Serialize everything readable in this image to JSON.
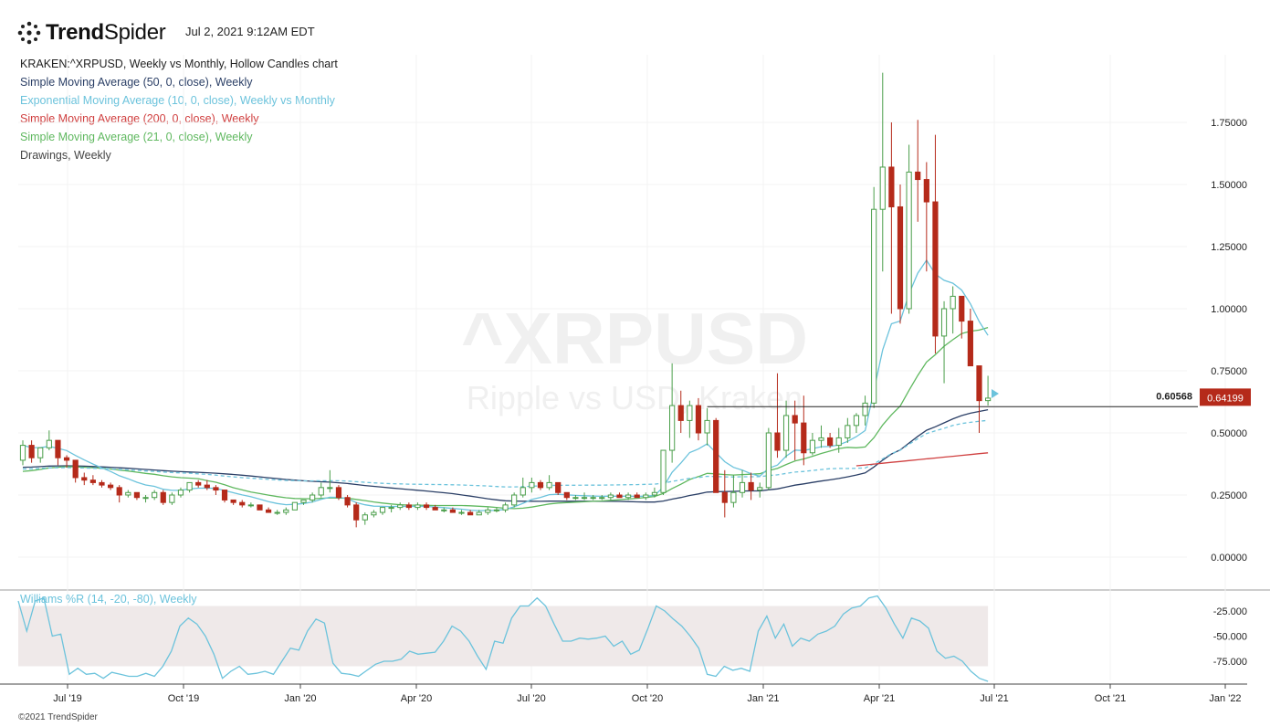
{
  "header": {
    "logo_text": "TrendSpider",
    "timestamp": "Jul 2, 2021 9:12AM EDT"
  },
  "legend": {
    "title": "KRAKEN:^XRPUSD, Weekly vs Monthly, Hollow Candles chart",
    "items": [
      {
        "label": "Simple Moving Average (50, 0, close), Weekly",
        "color": "#2b3f66"
      },
      {
        "label": "Exponential Moving Average (10, 0, close), Weekly vs Monthly",
        "color": "#6cc3dc"
      },
      {
        "label": "Simple Moving Average (200, 0, close), Weekly",
        "color": "#d04040"
      },
      {
        "label": "Simple Moving Average (21, 0, close), Weekly",
        "color": "#5fb85f"
      },
      {
        "label": "Drawings, Weekly",
        "color": "#444444"
      }
    ]
  },
  "watermark": {
    "symbol": "^XRPUSD",
    "name": "Ripple vs USD, Kraken"
  },
  "indicator": {
    "label": "Williams %R (14, -20, -80), Weekly",
    "ticks": [
      "-25.000",
      "-50.000",
      "-75.000"
    ]
  },
  "footer": "©2021 TrendSpider",
  "chart_data": {
    "type": "candlestick",
    "candle_style": "hollow",
    "interval": "weekly",
    "y_ticks": [
      "0.00000",
      "0.25000",
      "0.50000",
      "0.75000",
      "1.00000",
      "1.25000",
      "1.50000",
      "1.75000"
    ],
    "y_range": [
      -0.05,
      2.0
    ],
    "x_ticks": [
      "Jul '19",
      "Oct '19",
      "Jan '20",
      "Apr '20",
      "Jul '20",
      "Oct '20",
      "Jan '21",
      "Apr '21",
      "Jul '21",
      "Oct '21",
      "Jan '22"
    ],
    "horizontal_line": {
      "value": 0.60568,
      "label": "0.60568"
    },
    "last_price": {
      "value": 0.64199,
      "label": "0.64199"
    },
    "colors": {
      "up": "#4a9e4a",
      "down": "#b52a1a",
      "sma50": "#2b3f66",
      "ema10": "#6cc3dc",
      "sma200": "#d04040",
      "sma21": "#5fb85f",
      "wr_band": "#efe9e9"
    },
    "ohlc_weekly": [
      [
        0.39,
        0.47,
        0.37,
        0.45
      ],
      [
        0.45,
        0.47,
        0.38,
        0.4
      ],
      [
        0.4,
        0.44,
        0.38,
        0.44
      ],
      [
        0.44,
        0.51,
        0.43,
        0.47
      ],
      [
        0.47,
        0.47,
        0.37,
        0.4
      ],
      [
        0.4,
        0.41,
        0.36,
        0.39
      ],
      [
        0.39,
        0.39,
        0.3,
        0.32
      ],
      [
        0.32,
        0.34,
        0.29,
        0.31
      ],
      [
        0.31,
        0.33,
        0.29,
        0.3
      ],
      [
        0.3,
        0.31,
        0.28,
        0.29
      ],
      [
        0.29,
        0.3,
        0.27,
        0.28
      ],
      [
        0.28,
        0.29,
        0.22,
        0.25
      ],
      [
        0.25,
        0.27,
        0.24,
        0.26
      ],
      [
        0.26,
        0.26,
        0.23,
        0.24
      ],
      [
        0.24,
        0.25,
        0.22,
        0.24
      ],
      [
        0.24,
        0.27,
        0.23,
        0.26
      ],
      [
        0.26,
        0.27,
        0.21,
        0.22
      ],
      [
        0.22,
        0.26,
        0.21,
        0.25
      ],
      [
        0.25,
        0.28,
        0.24,
        0.27
      ],
      [
        0.27,
        0.3,
        0.26,
        0.3
      ],
      [
        0.3,
        0.31,
        0.28,
        0.29
      ],
      [
        0.29,
        0.31,
        0.27,
        0.28
      ],
      [
        0.28,
        0.29,
        0.25,
        0.27
      ],
      [
        0.27,
        0.27,
        0.22,
        0.23
      ],
      [
        0.23,
        0.23,
        0.21,
        0.22
      ],
      [
        0.22,
        0.23,
        0.2,
        0.21
      ],
      [
        0.21,
        0.22,
        0.2,
        0.21
      ],
      [
        0.21,
        0.21,
        0.19,
        0.19
      ],
      [
        0.19,
        0.2,
        0.18,
        0.18
      ],
      [
        0.18,
        0.19,
        0.17,
        0.18
      ],
      [
        0.18,
        0.2,
        0.17,
        0.19
      ],
      [
        0.19,
        0.22,
        0.19,
        0.22
      ],
      [
        0.22,
        0.23,
        0.21,
        0.23
      ],
      [
        0.23,
        0.26,
        0.22,
        0.25
      ],
      [
        0.25,
        0.3,
        0.24,
        0.28
      ],
      [
        0.28,
        0.35,
        0.26,
        0.28
      ],
      [
        0.28,
        0.29,
        0.23,
        0.24
      ],
      [
        0.24,
        0.25,
        0.2,
        0.21
      ],
      [
        0.21,
        0.22,
        0.12,
        0.15
      ],
      [
        0.15,
        0.18,
        0.13,
        0.17
      ],
      [
        0.17,
        0.19,
        0.16,
        0.18
      ],
      [
        0.18,
        0.2,
        0.17,
        0.2
      ],
      [
        0.2,
        0.21,
        0.18,
        0.2
      ],
      [
        0.2,
        0.22,
        0.19,
        0.21
      ],
      [
        0.21,
        0.22,
        0.19,
        0.2
      ],
      [
        0.2,
        0.22,
        0.19,
        0.21
      ],
      [
        0.21,
        0.22,
        0.19,
        0.2
      ],
      [
        0.2,
        0.21,
        0.19,
        0.19
      ],
      [
        0.19,
        0.2,
        0.18,
        0.19
      ],
      [
        0.19,
        0.2,
        0.18,
        0.18
      ],
      [
        0.18,
        0.19,
        0.17,
        0.18
      ],
      [
        0.18,
        0.19,
        0.17,
        0.17
      ],
      [
        0.17,
        0.19,
        0.17,
        0.18
      ],
      [
        0.18,
        0.2,
        0.17,
        0.19
      ],
      [
        0.19,
        0.2,
        0.18,
        0.19
      ],
      [
        0.19,
        0.22,
        0.18,
        0.21
      ],
      [
        0.21,
        0.26,
        0.2,
        0.25
      ],
      [
        0.25,
        0.32,
        0.24,
        0.28
      ],
      [
        0.28,
        0.32,
        0.26,
        0.3
      ],
      [
        0.3,
        0.31,
        0.27,
        0.28
      ],
      [
        0.28,
        0.33,
        0.27,
        0.3
      ],
      [
        0.3,
        0.3,
        0.25,
        0.26
      ],
      [
        0.26,
        0.26,
        0.23,
        0.24
      ],
      [
        0.24,
        0.25,
        0.23,
        0.24
      ],
      [
        0.24,
        0.26,
        0.23,
        0.24
      ],
      [
        0.24,
        0.25,
        0.23,
        0.24
      ],
      [
        0.24,
        0.25,
        0.23,
        0.24
      ],
      [
        0.24,
        0.26,
        0.23,
        0.25
      ],
      [
        0.25,
        0.26,
        0.24,
        0.24
      ],
      [
        0.24,
        0.26,
        0.23,
        0.25
      ],
      [
        0.25,
        0.26,
        0.24,
        0.24
      ],
      [
        0.24,
        0.26,
        0.23,
        0.25
      ],
      [
        0.25,
        0.28,
        0.24,
        0.26
      ],
      [
        0.26,
        0.43,
        0.25,
        0.43
      ],
      [
        0.43,
        0.78,
        0.38,
        0.61
      ],
      [
        0.61,
        0.67,
        0.5,
        0.55
      ],
      [
        0.55,
        0.63,
        0.48,
        0.61
      ],
      [
        0.61,
        0.64,
        0.47,
        0.5
      ],
      [
        0.5,
        0.6,
        0.45,
        0.55
      ],
      [
        0.55,
        0.56,
        0.26,
        0.26
      ],
      [
        0.26,
        0.35,
        0.16,
        0.22
      ],
      [
        0.22,
        0.33,
        0.2,
        0.26
      ],
      [
        0.26,
        0.35,
        0.24,
        0.3
      ],
      [
        0.3,
        0.34,
        0.23,
        0.27
      ],
      [
        0.27,
        0.3,
        0.24,
        0.28
      ],
      [
        0.28,
        0.52,
        0.27,
        0.5
      ],
      [
        0.5,
        0.74,
        0.4,
        0.43
      ],
      [
        0.43,
        0.63,
        0.4,
        0.57
      ],
      [
        0.57,
        0.63,
        0.39,
        0.54
      ],
      [
        0.54,
        0.65,
        0.37,
        0.42
      ],
      [
        0.42,
        0.5,
        0.41,
        0.47
      ],
      [
        0.47,
        0.53,
        0.44,
        0.48
      ],
      [
        0.48,
        0.5,
        0.44,
        0.45
      ],
      [
        0.45,
        0.52,
        0.42,
        0.48
      ],
      [
        0.48,
        0.56,
        0.46,
        0.53
      ],
      [
        0.53,
        0.58,
        0.5,
        0.57
      ],
      [
        0.57,
        0.65,
        0.53,
        0.62
      ],
      [
        0.62,
        1.49,
        0.6,
        1.4
      ],
      [
        1.4,
        1.95,
        1.15,
        1.57
      ],
      [
        1.57,
        1.75,
        0.98,
        1.41
      ],
      [
        1.41,
        1.5,
        0.94,
        1.0
      ],
      [
        1.0,
        1.66,
        0.98,
        1.55
      ],
      [
        1.55,
        1.76,
        1.35,
        1.52
      ],
      [
        1.52,
        1.59,
        1.15,
        1.43
      ],
      [
        1.43,
        1.7,
        0.82,
        0.89
      ],
      [
        0.89,
        1.03,
        0.7,
        1.0
      ],
      [
        1.0,
        1.09,
        0.9,
        1.05
      ],
      [
        1.05,
        1.05,
        0.88,
        0.95
      ],
      [
        0.95,
        1.0,
        0.77,
        0.77
      ],
      [
        0.77,
        0.77,
        0.5,
        0.63
      ],
      [
        0.63,
        0.73,
        0.61,
        0.64
      ]
    ],
    "wr_values": [
      -15,
      -45,
      -15,
      -12,
      -50,
      -48,
      -88,
      -82,
      -88,
      -87,
      -92,
      -86,
      -88,
      -90,
      -90,
      -87,
      -90,
      -80,
      -65,
      -40,
      -32,
      -38,
      -50,
      -68,
      -92,
      -85,
      -80,
      -88,
      -87,
      -85,
      -88,
      -75,
      -62,
      -64,
      -45,
      -33,
      -37,
      -77,
      -87,
      -88,
      -90,
      -84,
      -78,
      -75,
      -75,
      -73,
      -65,
      -68,
      -67,
      -66,
      -55,
      -40,
      -45,
      -55,
      -70,
      -83,
      -55,
      -57,
      -32,
      -20,
      -20,
      -12,
      -20,
      -38,
      -55,
      -55,
      -52,
      -53,
      -52,
      -50,
      -60,
      -55,
      -68,
      -64,
      -43,
      -20,
      -25,
      -33,
      -40,
      -50,
      -62,
      -88,
      -90,
      -80,
      -84,
      -82,
      -85,
      -45,
      -30,
      -52,
      -38,
      -60,
      -52,
      -55,
      -48,
      -45,
      -40,
      -28,
      -22,
      -20,
      -12,
      -10,
      -22,
      -38,
      -52,
      -32,
      -35,
      -42,
      -65,
      -72,
      -70,
      -75,
      -85,
      -92,
      -95
    ]
  }
}
